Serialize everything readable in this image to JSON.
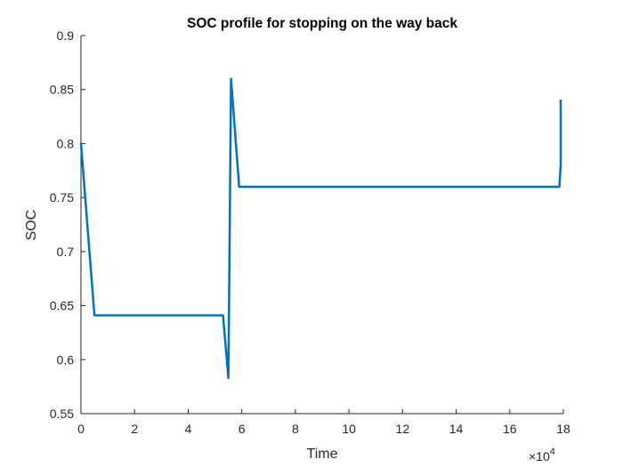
{
  "chart_data": {
    "type": "line",
    "title": "SOC profile for stopping on the way back",
    "xlabel": "Time",
    "ylabel": "SOC",
    "x_exponent_label": "×10",
    "x_exponent_power": "4",
    "xlim": [
      0,
      18
    ],
    "ylim": [
      0.55,
      0.9
    ],
    "xticks": [
      0,
      2,
      4,
      6,
      8,
      10,
      12,
      14,
      16,
      18
    ],
    "xtick_labels": [
      "0",
      "2",
      "4",
      "6",
      "8",
      "10",
      "12",
      "14",
      "16",
      "18"
    ],
    "yticks": [
      0.55,
      0.6,
      0.65,
      0.7,
      0.75,
      0.8,
      0.85,
      0.9
    ],
    "ytick_labels": [
      "0.55",
      "0.6",
      "0.65",
      "0.7",
      "0.75",
      "0.8",
      "0.85",
      "0.9"
    ],
    "grid": false,
    "line_color": "#0072BD",
    "series": [
      {
        "x": [
          0,
          0.5,
          5.3,
          5.5,
          5.6,
          5.9,
          17.85,
          17.9,
          17.9
        ],
        "y": [
          0.8,
          0.641,
          0.641,
          0.583,
          0.86,
          0.76,
          0.76,
          0.78,
          0.84
        ]
      }
    ]
  }
}
